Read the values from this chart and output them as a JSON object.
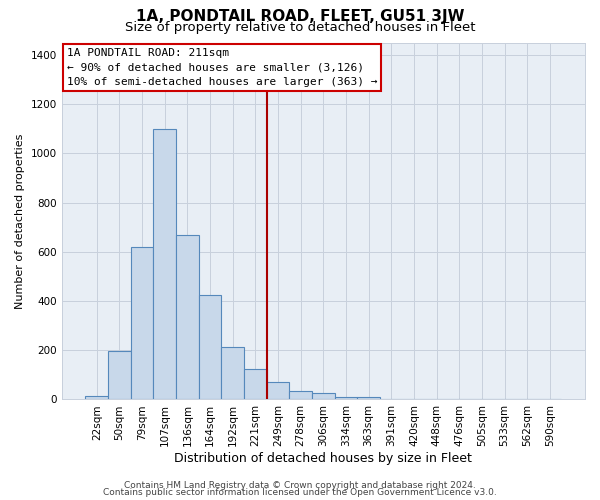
{
  "title": "1A, PONDTAIL ROAD, FLEET, GU51 3JW",
  "subtitle": "Size of property relative to detached houses in Fleet",
  "xlabel": "Distribution of detached houses by size in Fleet",
  "ylabel": "Number of detached properties",
  "bar_color": "#c8d8ea",
  "bar_edge_color": "#5588bb",
  "bar_fill_alpha": 0.5,
  "ax_facecolor": "#e8eef5",
  "categories": [
    "22sqm",
    "50sqm",
    "79sqm",
    "107sqm",
    "136sqm",
    "164sqm",
    "192sqm",
    "221sqm",
    "249sqm",
    "278sqm",
    "306sqm",
    "334sqm",
    "363sqm",
    "391sqm",
    "420sqm",
    "448sqm",
    "476sqm",
    "505sqm",
    "533sqm",
    "562sqm",
    "590sqm"
  ],
  "values": [
    15,
    195,
    620,
    1100,
    670,
    425,
    215,
    125,
    70,
    33,
    27,
    12,
    8,
    0,
    0,
    0,
    0,
    0,
    0,
    0,
    0
  ],
  "ylim": [
    0,
    1450
  ],
  "yticks": [
    0,
    200,
    400,
    600,
    800,
    1000,
    1200,
    1400
  ],
  "vline_x": 7.5,
  "vline_color": "#aa0000",
  "annotation_title": "1A PONDTAIL ROAD: 211sqm",
  "annotation_line1": "← 90% of detached houses are smaller (3,126)",
  "annotation_line2": "10% of semi-detached houses are larger (363) →",
  "box_facecolor": "#ffffff",
  "box_edgecolor": "#cc0000",
  "footer1": "Contains HM Land Registry data © Crown copyright and database right 2024.",
  "footer2": "Contains public sector information licensed under the Open Government Licence v3.0.",
  "grid_color": "#c8d0dc",
  "title_fontsize": 11,
  "subtitle_fontsize": 9.5,
  "xlabel_fontsize": 9,
  "ylabel_fontsize": 8,
  "tick_fontsize": 7.5,
  "ann_fontsize": 8,
  "footer_fontsize": 6.5
}
